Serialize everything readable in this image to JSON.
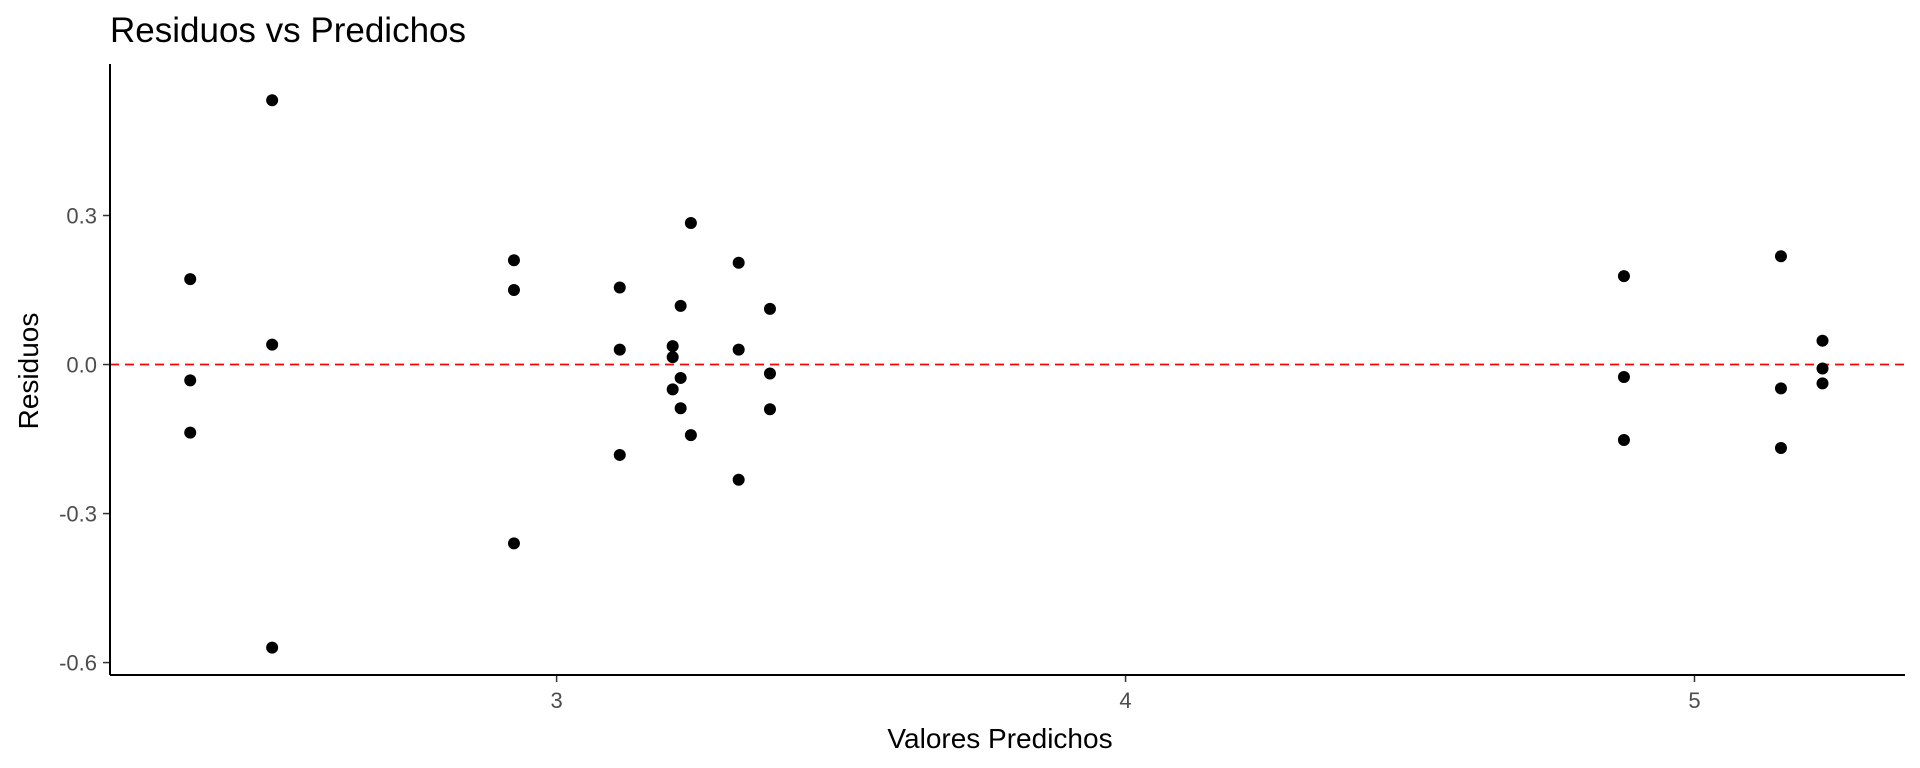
{
  "chart_data": {
    "type": "scatter",
    "title": "Residuos vs Predichos",
    "xlabel": "Valores Predichos",
    "ylabel": "Residuos",
    "xlim": [
      2.215,
      5.37
    ],
    "ylim": [
      -0.625,
      0.605
    ],
    "x_ticks": [
      {
        "value": 3,
        "label": "3"
      },
      {
        "value": 4,
        "label": "4"
      },
      {
        "value": 5,
        "label": "5"
      }
    ],
    "y_ticks": [
      {
        "value": 0.3,
        "label": "0.3"
      },
      {
        "value": 0.0,
        "label": "0.0"
      },
      {
        "value": -0.3,
        "label": "-0.3"
      },
      {
        "value": -0.6,
        "label": "-0.6"
      }
    ],
    "reference_line": {
      "y": 0.0,
      "style": "dashed",
      "color": "#ff0000"
    },
    "grid": false,
    "point_color": "#000000",
    "points": [
      {
        "x": 2.356,
        "y": 0.172
      },
      {
        "x": 2.356,
        "y": -0.032
      },
      {
        "x": 2.356,
        "y": -0.137
      },
      {
        "x": 2.5,
        "y": 0.532
      },
      {
        "x": 2.5,
        "y": 0.04
      },
      {
        "x": 2.5,
        "y": -0.57
      },
      {
        "x": 2.925,
        "y": 0.21
      },
      {
        "x": 2.925,
        "y": 0.15
      },
      {
        "x": 2.925,
        "y": -0.36
      },
      {
        "x": 3.111,
        "y": 0.155
      },
      {
        "x": 3.111,
        "y": 0.03
      },
      {
        "x": 3.111,
        "y": -0.182
      },
      {
        "x": 3.204,
        "y": 0.037
      },
      {
        "x": 3.204,
        "y": 0.015
      },
      {
        "x": 3.204,
        "y": -0.05
      },
      {
        "x": 3.218,
        "y": 0.118
      },
      {
        "x": 3.218,
        "y": -0.027
      },
      {
        "x": 3.218,
        "y": -0.088
      },
      {
        "x": 3.236,
        "y": 0.285
      },
      {
        "x": 3.236,
        "y": -0.142
      },
      {
        "x": 3.32,
        "y": 0.205
      },
      {
        "x": 3.32,
        "y": 0.03
      },
      {
        "x": 3.32,
        "y": -0.232
      },
      {
        "x": 3.375,
        "y": 0.112
      },
      {
        "x": 3.375,
        "y": -0.018
      },
      {
        "x": 3.375,
        "y": -0.09
      },
      {
        "x": 4.876,
        "y": 0.178
      },
      {
        "x": 4.876,
        "y": -0.025
      },
      {
        "x": 4.876,
        "y": -0.152
      },
      {
        "x": 5.152,
        "y": 0.218
      },
      {
        "x": 5.152,
        "y": -0.048
      },
      {
        "x": 5.152,
        "y": -0.168
      },
      {
        "x": 5.225,
        "y": 0.048
      },
      {
        "x": 5.225,
        "y": -0.008
      },
      {
        "x": 5.225,
        "y": -0.038
      }
    ]
  }
}
